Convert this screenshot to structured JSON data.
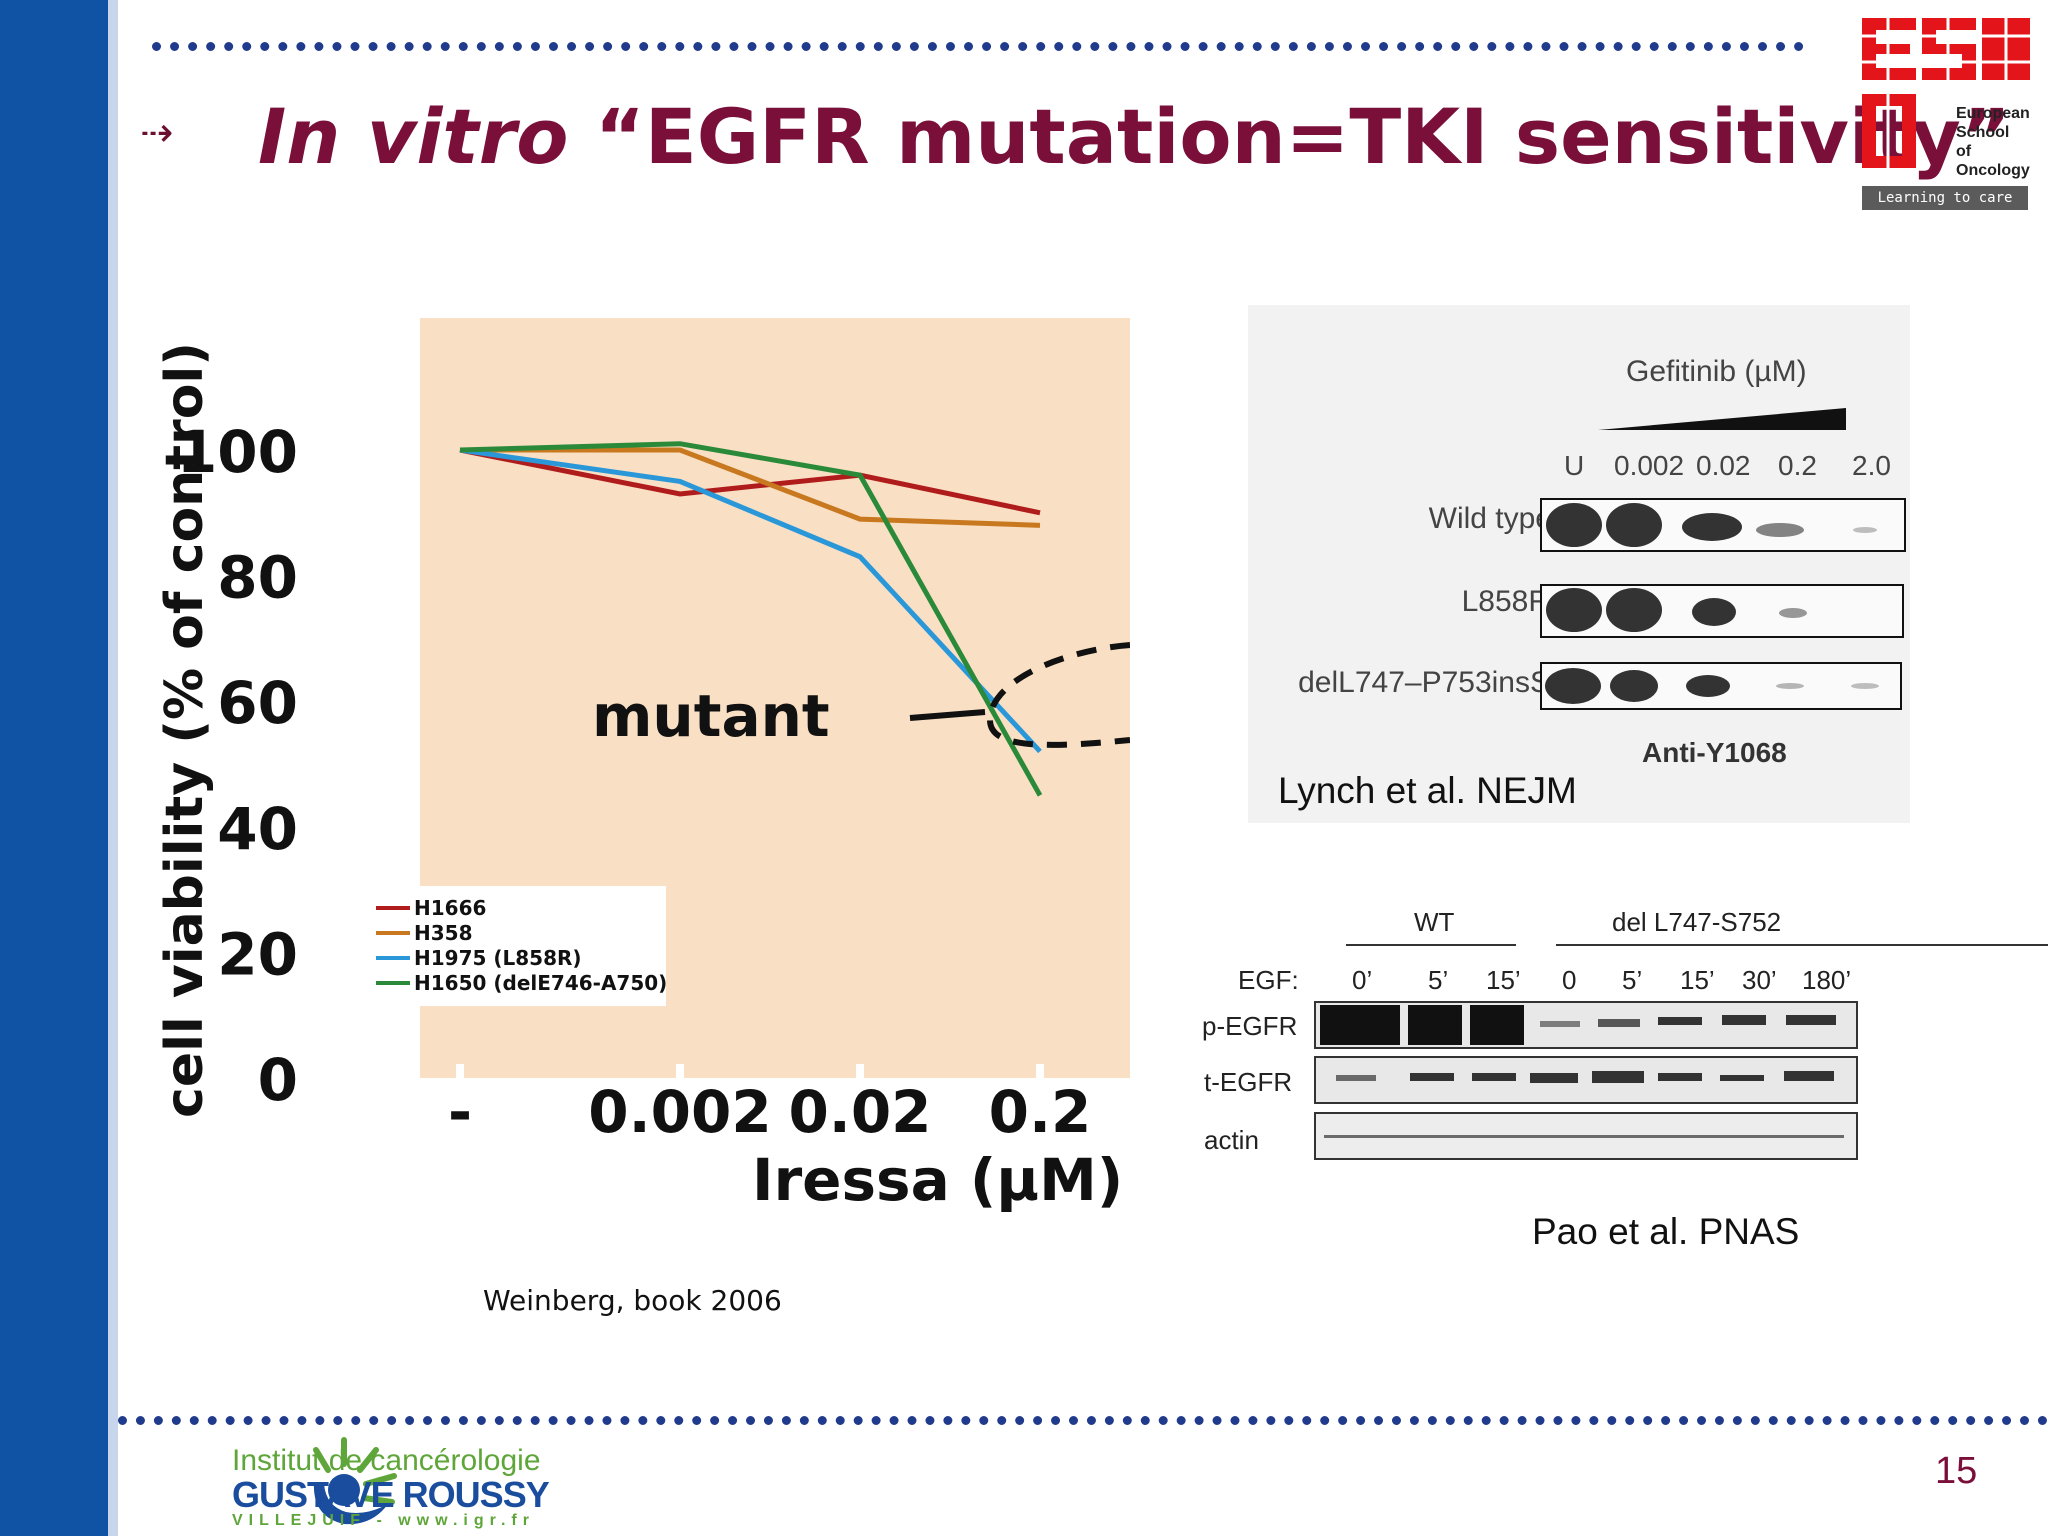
{
  "slide": {
    "title_italic": "In vitro",
    "title_rest": " “EGFR mutation=TKI sensitivity”",
    "page_number": "15",
    "colors": {
      "title": "#7a0f3a",
      "left_band": "#1053a4",
      "dots": "#203a8c"
    }
  },
  "logos": {
    "eso": {
      "line1": "European",
      "line2": "School",
      "line3": "of",
      "line4": "Oncology",
      "tagline": "Learning to care"
    },
    "igr": {
      "line1": "Institut de cancérologie",
      "line2": "GUSTAVE ROUSSY",
      "line3": "VILLEJUIF - www.igr.fr"
    }
  },
  "chart_data": {
    "type": "line",
    "ylabel": "cell viability (% of control)",
    "xlabel": "Iressa (µM)",
    "x_tick_labels": [
      "-",
      "0.002",
      "0.02",
      "0.2"
    ],
    "y_tick_labels": [
      "100",
      "80",
      "60",
      "40",
      "20",
      "0"
    ],
    "ylim": [
      0,
      100
    ],
    "annotation": "mutant",
    "background": "#f9dfc4",
    "series": [
      {
        "name": "H1666",
        "color": "#b01c1c",
        "values": [
          100,
          93,
          96,
          90
        ]
      },
      {
        "name": "H358",
        "color": "#c8781e",
        "values": [
          100,
          100,
          89,
          88
        ]
      },
      {
        "name": "H1975 (L858R)",
        "color": "#2a98d8",
        "values": [
          100,
          95,
          83,
          52
        ]
      },
      {
        "name": "H1650 (delE746-A750)",
        "color": "#2a8a3a",
        "values": [
          100,
          101,
          96,
          45
        ]
      }
    ],
    "caption": "Weinberg, book 2006"
  },
  "blot1": {
    "header": "Gefitinib (µM)",
    "columns": [
      "U",
      "0.002",
      "0.02",
      "0.2",
      "2.0"
    ],
    "rows": [
      "Wild type",
      "L858R",
      "delL747–P753insS"
    ],
    "antibody": "Anti-Y1068",
    "citation": "Lynch et al. NEJM"
  },
  "blot2": {
    "group_wt": "WT",
    "group_mut": "del L747-S752",
    "egf_label": "EGF:",
    "timepoints": [
      "0’",
      "5’",
      "15’",
      "0",
      "5’",
      "15’",
      "30’",
      "180’"
    ],
    "rows": [
      "p-EGFR",
      "t-EGFR",
      "actin"
    ],
    "citation": "Pao et al. PNAS"
  }
}
